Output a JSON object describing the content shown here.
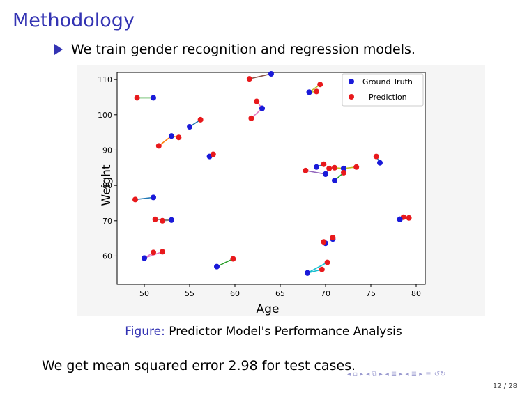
{
  "slide": {
    "title": "Methodology",
    "bullet": "We train gender recognition and regression models.",
    "caption_label": "Figure:",
    "caption_text": "Predictor Model's Performance Analysis",
    "footer_text": "We get mean squared error 2.98 for test cases.",
    "page": "12 / 28"
  },
  "colors": {
    "accent": "#3333b3",
    "ground_truth": "#1a1ad9",
    "prediction": "#e8191c"
  },
  "icons": {
    "bullet": "triangle-right-icon",
    "nav": [
      "nav-first-icon",
      "nav-prev-frame-icon",
      "nav-prev-section-icon",
      "nav-next-section-icon",
      "nav-zoom-icon",
      "nav-search-icon"
    ]
  },
  "chart_data": {
    "type": "scatter",
    "xlabel": "Age",
    "ylabel": "Weight",
    "xlim": [
      47,
      81
    ],
    "ylim": [
      52,
      112
    ],
    "xticks": [
      50,
      55,
      60,
      65,
      70,
      75,
      80
    ],
    "yticks": [
      60,
      70,
      80,
      90,
      100,
      110
    ],
    "legend": {
      "placement": "top-right",
      "entries": [
        "Ground Truth",
        "Prediction"
      ]
    },
    "grid": false,
    "pairs": [
      {
        "gt": [
          51,
          104.8
        ],
        "pred": [
          49.2,
          104.8
        ],
        "line": "#2ca02c"
      },
      {
        "gt": [
          64,
          111.6
        ],
        "pred": [
          61.6,
          110.2
        ],
        "line": "#8c564b"
      },
      {
        "gt": [
          68.2,
          106.4
        ],
        "pred": [
          69.4,
          108.6
        ],
        "line": "#bcbd22"
      },
      {
        "gt": [
          68.2,
          106.4
        ],
        "pred": [
          69,
          106.6
        ],
        "line": "#bcbd22"
      },
      {
        "gt": [
          63,
          101.8
        ],
        "pred": [
          62.4,
          103.8
        ],
        "line": "#e377c2"
      },
      {
        "gt": [
          63,
          101.8
        ],
        "pred": [
          61.8,
          99
        ],
        "line": "#e377c2"
      },
      {
        "gt": [
          55,
          96.6
        ],
        "pred": [
          56.2,
          98.6
        ],
        "line": "#1f77b4"
      },
      {
        "gt": [
          53,
          94
        ],
        "pred": [
          51.6,
          91.2
        ],
        "line": "#ff7f0e"
      },
      {
        "gt": [
          53,
          94
        ],
        "pred": [
          53.8,
          93.6
        ],
        "line": "#ff7f0e"
      },
      {
        "gt": [
          57.2,
          88.2
        ],
        "pred": [
          57.6,
          88.8
        ],
        "line": "#1f77b4"
      },
      {
        "gt": [
          69,
          85.2
        ],
        "pred": [
          69.8,
          86
        ],
        "line": "#1f77b4"
      },
      {
        "gt": [
          70,
          83.2
        ],
        "pred": [
          67.8,
          84.2
        ],
        "line": "#9467bd"
      },
      {
        "gt": [
          70,
          83.2
        ],
        "pred": [
          70.4,
          84.8
        ],
        "line": "#9467bd"
      },
      {
        "gt": [
          72,
          84.8
        ],
        "pred": [
          73.4,
          85.2
        ],
        "line": "#bcbd22"
      },
      {
        "gt": [
          72,
          84.8
        ],
        "pred": [
          71,
          85
        ],
        "line": "#bcbd22"
      },
      {
        "gt": [
          71,
          81.4
        ],
        "pred": [
          72,
          83.6
        ],
        "line": "#2ca02c"
      },
      {
        "gt": [
          76,
          86.4
        ],
        "pred": [
          75.6,
          88.2
        ],
        "line": "#1f77b4"
      },
      {
        "gt": [
          51,
          76.6
        ],
        "pred": [
          49,
          76
        ],
        "line": "#1f77b4"
      },
      {
        "gt": [
          53,
          70.2
        ],
        "pred": [
          51.2,
          70.4
        ],
        "line": "#7f7f7f"
      },
      {
        "gt": [
          53,
          70.2
        ],
        "pred": [
          52,
          70
        ],
        "line": "#7f7f7f"
      },
      {
        "gt": [
          78.2,
          70.4
        ],
        "pred": [
          78.6,
          71
        ],
        "line": "#1f77b4"
      },
      {
        "gt": [
          78.2,
          70.4
        ],
        "pred": [
          79.2,
          70.8
        ],
        "line": "#1f77b4"
      },
      {
        "gt": [
          70,
          63.6
        ],
        "pred": [
          69.8,
          64
        ],
        "line": "#1f77b4"
      },
      {
        "gt": [
          70.8,
          64.8
        ],
        "pred": [
          70.8,
          65.2
        ],
        "line": "#1f77b4"
      },
      {
        "gt": [
          50,
          59.4
        ],
        "pred": [
          51,
          61
        ],
        "line": "#e377c2"
      },
      {
        "gt": [
          50,
          59.4
        ],
        "pred": [
          52,
          61.2
        ],
        "line": "#e377c2"
      },
      {
        "gt": [
          58,
          57
        ],
        "pred": [
          59.8,
          59.2
        ],
        "line": "#2ca02c"
      },
      {
        "gt": [
          68,
          55.2
        ],
        "pred": [
          70.2,
          58.2
        ],
        "line": "#17becf"
      },
      {
        "gt": [
          68,
          55.2
        ],
        "pred": [
          69.6,
          56.2
        ],
        "line": "#17becf"
      }
    ]
  }
}
